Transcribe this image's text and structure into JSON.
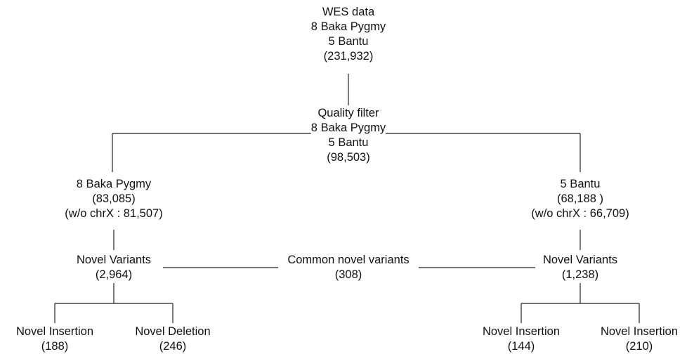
{
  "nodes": {
    "root": [
      "WES data",
      "8 Baka Pygmy",
      "5 Bantu",
      "(231,932)"
    ],
    "quality": [
      "Quality filter",
      "8 Baka Pygmy",
      "5 Bantu",
      "(98,503)"
    ],
    "baka": [
      "8 Baka Pygmy",
      "(83,085)",
      "(w/o chrX : 81,507)"
    ],
    "bantu": [
      "5 Bantu",
      "(68,188 )",
      "(w/o chrX : 66,709)"
    ],
    "baka_novel": [
      "Novel Variants",
      "(2,964)"
    ],
    "common": [
      "Common novel variants",
      "(308)"
    ],
    "bantu_novel": [
      "Novel Variants",
      "(1,238)"
    ],
    "baka_ins": [
      "Novel Insertion",
      "(188)"
    ],
    "baka_del": [
      "Novel Deletion",
      "(246)"
    ],
    "bantu_ins": [
      "Novel Insertion",
      "(144)"
    ],
    "bantu_ins2": [
      "Novel Insertion",
      "(210)"
    ]
  }
}
